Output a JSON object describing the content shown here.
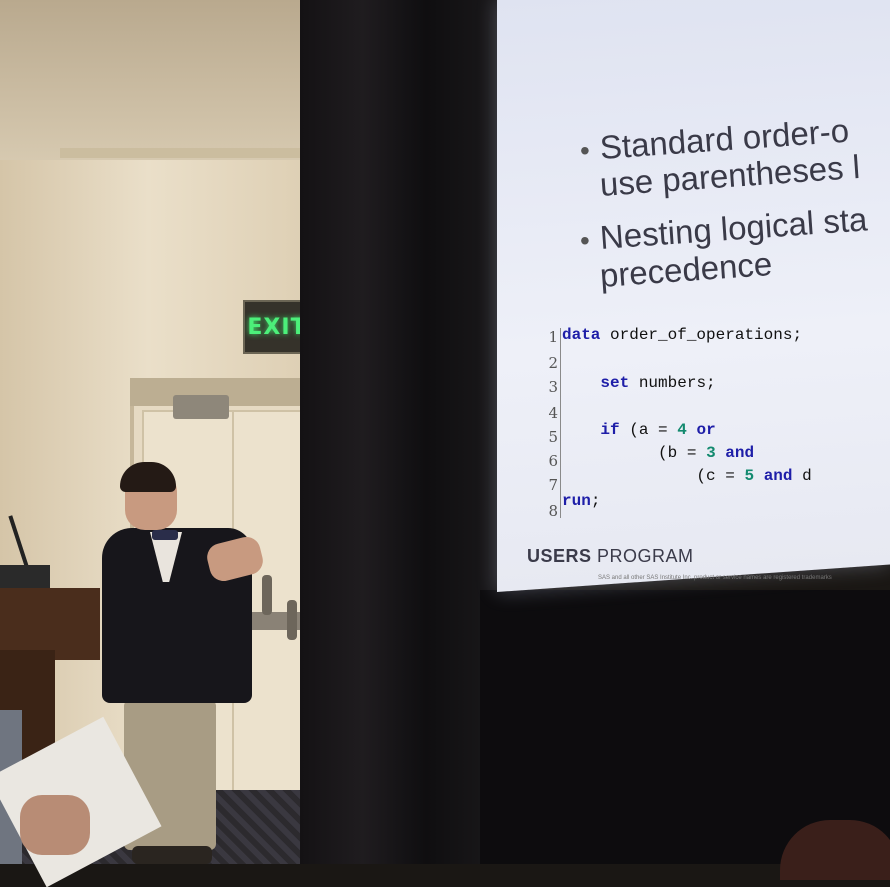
{
  "signage": {
    "exit_sign": "EXIT"
  },
  "slide": {
    "bullets": [
      "Standard order-o",
      "use parentheses l",
      "Nesting logical sta",
      "precedence"
    ],
    "code_lines": [
      {
        "no": "1",
        "text": "data order_of_operations;"
      },
      {
        "no": "2",
        "text": ""
      },
      {
        "no": "3",
        "text": "    set numbers;"
      },
      {
        "no": "4",
        "text": ""
      },
      {
        "no": "5",
        "text": "    if (a = 4 or"
      },
      {
        "no": "6",
        "text": "          (b = 3 and"
      },
      {
        "no": "7",
        "text": "              (c = 5 and d"
      },
      {
        "no": "8",
        "text": "run;"
      }
    ],
    "footer_bold": "USERS",
    "footer_rest": " PROGRAM",
    "fine_print": "SAS and all other SAS Institute Inc. product or service names are registered trademarks"
  },
  "colors": {
    "keyword": "#1e1ea8",
    "number": "#138a6f",
    "exit_green": "#4cf07a"
  }
}
